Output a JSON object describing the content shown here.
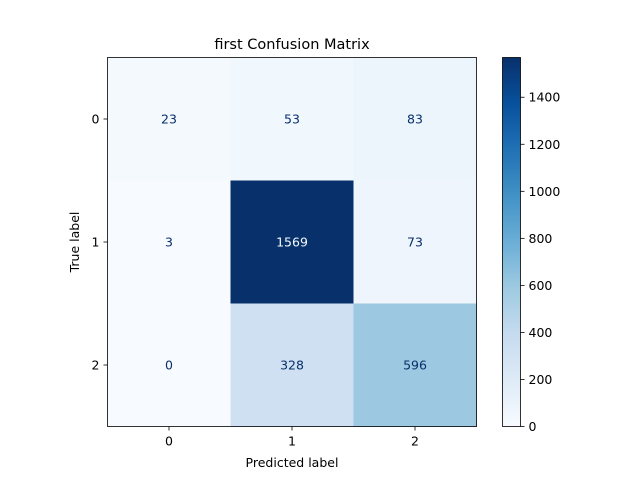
{
  "chart_data": {
    "type": "heatmap",
    "title": "first Confusion Matrix",
    "xlabel": "Predicted label",
    "ylabel": "True label",
    "x_categories": [
      "0",
      "1",
      "2"
    ],
    "y_categories": [
      "0",
      "1",
      "2"
    ],
    "values": [
      [
        23,
        53,
        83
      ],
      [
        3,
        1569,
        73
      ],
      [
        0,
        328,
        596
      ]
    ],
    "colormap": "Blues",
    "colorbar": {
      "min": 0,
      "max": 1569,
      "ticks": [
        0,
        200,
        400,
        600,
        800,
        1000,
        1200,
        1400
      ]
    },
    "colors": {
      "low": "#f7fbff",
      "high": "#08306b",
      "text_dark_bg": "#f7fbff",
      "text_light_bg": "#08306b"
    }
  }
}
